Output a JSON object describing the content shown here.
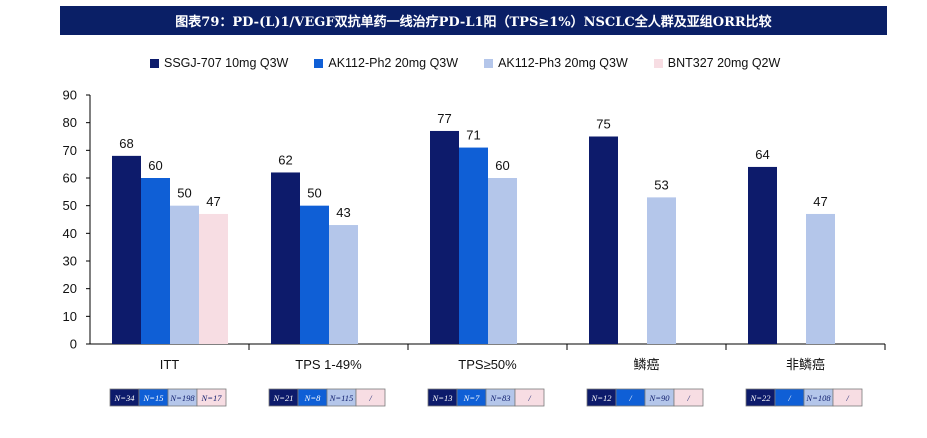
{
  "title": "图表79：PD-(L)1/VEGF双抗单药一线治疗PD-L1阳（TPS≥1%）NSCLC全人群及亚组ORR比较",
  "colors": [
    "#0d1b6b",
    "#0f5fd6",
    "#b4c6ea",
    "#f7dde3"
  ],
  "chart_data": {
    "type": "bar",
    "title": "PD-(L)1/VEGF双抗单药一线治疗PD-L1阳（TPS≥1%）NSCLC全人群及亚组ORR比较",
    "categories": [
      "ITT",
      "TPS 1-49%",
      "TPS≥50%",
      "鳞癌",
      "非鳞癌"
    ],
    "series": [
      {
        "name": "SSGJ-707 10mg Q3W",
        "values": [
          68,
          62,
          77,
          75,
          64
        ],
        "sample_sizes": [
          "N=34",
          "N=21",
          "N=13",
          "N=12",
          "N=22"
        ]
      },
      {
        "name": "AK112-Ph2 20mg Q3W",
        "values": [
          60,
          50,
          71,
          null,
          null
        ],
        "sample_sizes": [
          "N=15",
          "N=8",
          "N=7",
          "/",
          "/"
        ]
      },
      {
        "name": "AK112-Ph3 20mg Q3W",
        "values": [
          50,
          43,
          60,
          53,
          47
        ],
        "sample_sizes": [
          "N=198",
          "N=115",
          "N=83",
          "N=90",
          "N=108"
        ]
      },
      {
        "name": "BNT327 20mg Q2W",
        "values": [
          47,
          null,
          null,
          null,
          null
        ],
        "sample_sizes": [
          "N=17",
          "/",
          "/",
          "/",
          "/"
        ]
      }
    ],
    "ylim": [
      0,
      90
    ],
    "yticks": [
      0,
      10,
      20,
      30,
      40,
      50,
      60,
      70,
      80,
      90
    ],
    "xlabel": "",
    "ylabel": "",
    "legend_position": "top",
    "grid": false
  }
}
